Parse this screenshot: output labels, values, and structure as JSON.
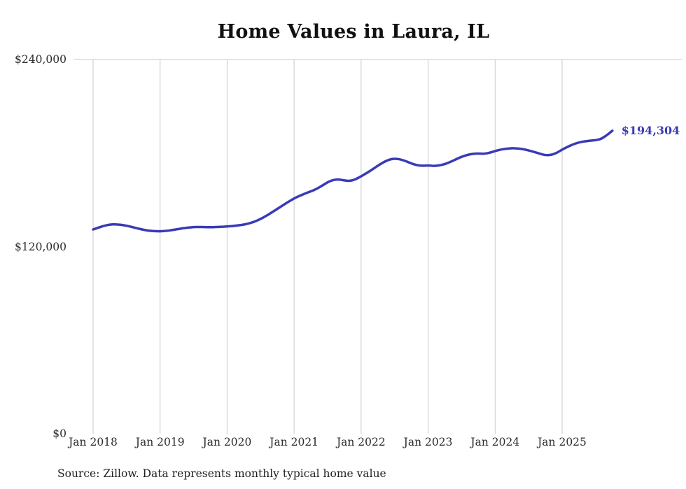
{
  "title": "Home Values in Laura, IL",
  "source_note": "Source: Zillow. Data represents monthly typical home value",
  "chart_data": {
    "type": "line",
    "title": "Home Values in Laura, IL",
    "series_name": "Typical home value",
    "frequency": "monthly",
    "x_start": "Jan 2018",
    "x_end": "Oct 2025",
    "ylim": [
      0,
      240000
    ],
    "grid": "vertical-yearly",
    "legend": "none",
    "line_color": "#3a3ab8",
    "grid_color": "#c9c9c9",
    "end_label": "$194,304",
    "end_value": 194304,
    "yticks": [
      {
        "value": 240000,
        "label": "$240,000"
      },
      {
        "value": 120000,
        "label": "$120,000"
      },
      {
        "value": 0,
        "label": "$0"
      }
    ],
    "xticks": [
      {
        "month_index": 0,
        "label": "Jan 2018"
      },
      {
        "month_index": 12,
        "label": "Jan 2019"
      },
      {
        "month_index": 24,
        "label": "Jan 2020"
      },
      {
        "month_index": 36,
        "label": "Jan 2021"
      },
      {
        "month_index": 48,
        "label": "Jan 2022"
      },
      {
        "month_index": 60,
        "label": "Jan 2023"
      },
      {
        "month_index": 72,
        "label": "Jan 2024"
      },
      {
        "month_index": 84,
        "label": "Jan 2025"
      }
    ],
    "values": [
      131000,
      132300,
      133400,
      134100,
      134300,
      134000,
      133400,
      132500,
      131600,
      130800,
      130200,
      129900,
      129800,
      130000,
      130500,
      131100,
      131700,
      132200,
      132500,
      132600,
      132500,
      132400,
      132500,
      132700,
      132900,
      133200,
      133600,
      134100,
      134900,
      136100,
      137700,
      139700,
      141900,
      144200,
      146500,
      148800,
      150900,
      152600,
      154100,
      155400,
      156900,
      159000,
      161300,
      162800,
      163100,
      162400,
      162000,
      163100,
      165100,
      167100,
      169400,
      171900,
      174100,
      175800,
      176400,
      176000,
      174800,
      173300,
      172200,
      171800,
      172100,
      171700,
      172000,
      172900,
      174300,
      176000,
      177600,
      178800,
      179500,
      179700,
      179500,
      180100,
      181300,
      182200,
      182800,
      183100,
      183000,
      182500,
      181700,
      180700,
      179600,
      178600,
      178700,
      180000,
      182200,
      184000,
      185600,
      186800,
      187500,
      187900,
      188200,
      189000,
      191400,
      194304
    ]
  }
}
